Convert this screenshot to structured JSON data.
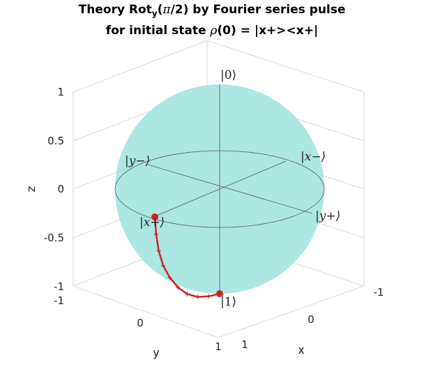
{
  "chart_data": {
    "type": "scatter",
    "title_line1": "Theory Rot_y(π/2) by Fourier series pulse",
    "title_line2": "for initial state ρ(0) = |x+><x+|",
    "xlabel": "x",
    "ylabel": "y",
    "zlabel": "z",
    "xlim": [
      -1,
      1
    ],
    "ylim": [
      -1,
      1
    ],
    "zlim": [
      -1,
      1
    ],
    "xticks": [
      "-1",
      "0",
      "1"
    ],
    "yticks": [
      "-1",
      "0",
      "1"
    ],
    "zticks": [
      "-1",
      "-0.5",
      "0",
      "0.5",
      "1"
    ],
    "grid": true,
    "sphere_color": "#a8e6e2",
    "trajectory_color": "#cc2222",
    "state_labels": {
      "zero": "|0⟩",
      "one": "|1⟩",
      "x_plus": "|x+⟩",
      "x_minus": "|x−⟩",
      "y_plus": "|y+⟩",
      "y_minus": "|y−⟩"
    },
    "series": [
      {
        "points": [
          [
            1.0,
            0,
            0
          ],
          [
            0.98,
            0,
            -0.17
          ],
          [
            0.94,
            0,
            -0.34
          ],
          [
            0.87,
            0,
            -0.5
          ],
          [
            0.77,
            0,
            -0.64
          ],
          [
            0.64,
            0,
            -0.77
          ],
          [
            0.5,
            0,
            -0.87
          ],
          [
            0.34,
            0,
            -0.94
          ],
          [
            0.17,
            0,
            -0.98
          ],
          [
            0.0,
            0,
            -1.0
          ]
        ],
        "start": [
          1.0,
          0,
          0
        ],
        "end": [
          0.0,
          0,
          -1.0
        ]
      }
    ]
  }
}
